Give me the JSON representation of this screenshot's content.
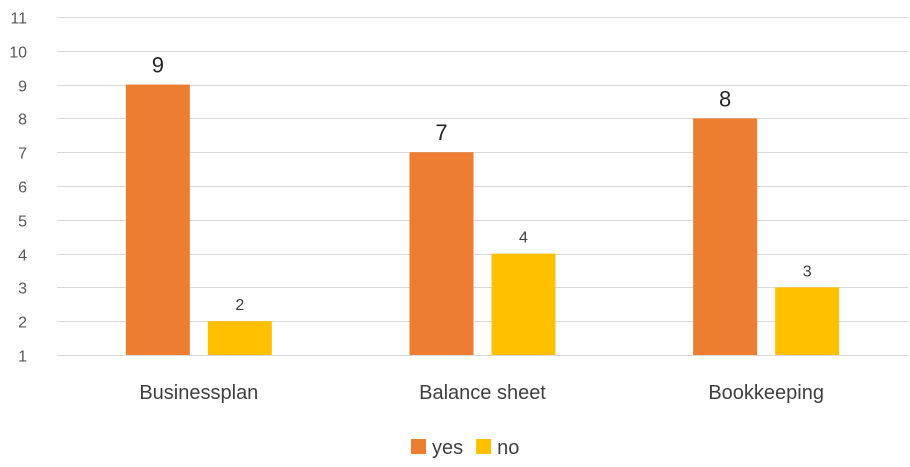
{
  "chart_data": {
    "type": "bar",
    "categories": [
      "Businessplan",
      "Balance sheet",
      "Bookkeeping"
    ],
    "series": [
      {
        "name": "yes",
        "values": [
          9,
          7,
          8
        ],
        "color": "#ED7D31",
        "label_size": "large"
      },
      {
        "name": "no",
        "values": [
          2,
          4,
          3
        ],
        "color": "#FFC000",
        "label_size": "small"
      }
    ],
    "y_ticks": [
      1,
      2,
      3,
      4,
      5,
      6,
      7,
      8,
      9,
      10,
      11
    ],
    "ylim": [
      1,
      11
    ],
    "grid": true,
    "legend_position": "bottom"
  }
}
